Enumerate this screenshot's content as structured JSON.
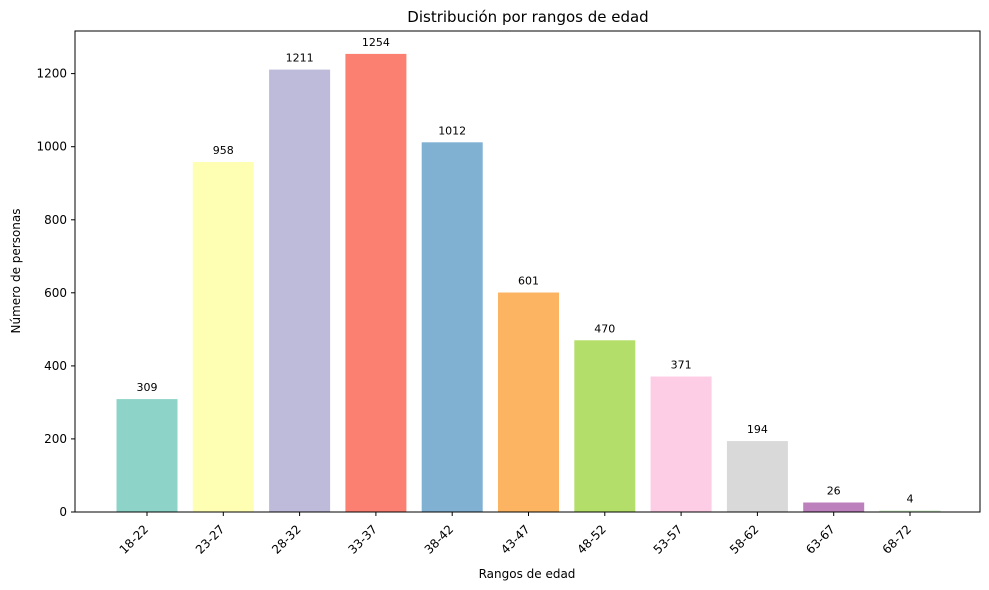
{
  "chart_data": {
    "type": "bar",
    "title": "Distribución por rangos de edad",
    "xlabel": "Rangos de edad",
    "ylabel": "Número de personas",
    "categories": [
      "18-22",
      "23-27",
      "28-32",
      "33-37",
      "38-42",
      "43-47",
      "48-52",
      "53-57",
      "58-62",
      "63-67",
      "68-72"
    ],
    "values": [
      309,
      958,
      1211,
      1254,
      1012,
      601,
      470,
      371,
      194,
      26,
      4
    ],
    "colors": [
      "#8dd3c7",
      "#ffffb3",
      "#bebada",
      "#fb8072",
      "#80b1d3",
      "#fdb462",
      "#b3de69",
      "#fccde5",
      "#d9d9d9",
      "#bc80bd",
      "#ccebc5"
    ],
    "ylim": [
      0,
      1316.7
    ],
    "yticks": [
      0,
      200,
      400,
      600,
      800,
      1000,
      1200
    ],
    "grid": false,
    "legend": "none"
  }
}
